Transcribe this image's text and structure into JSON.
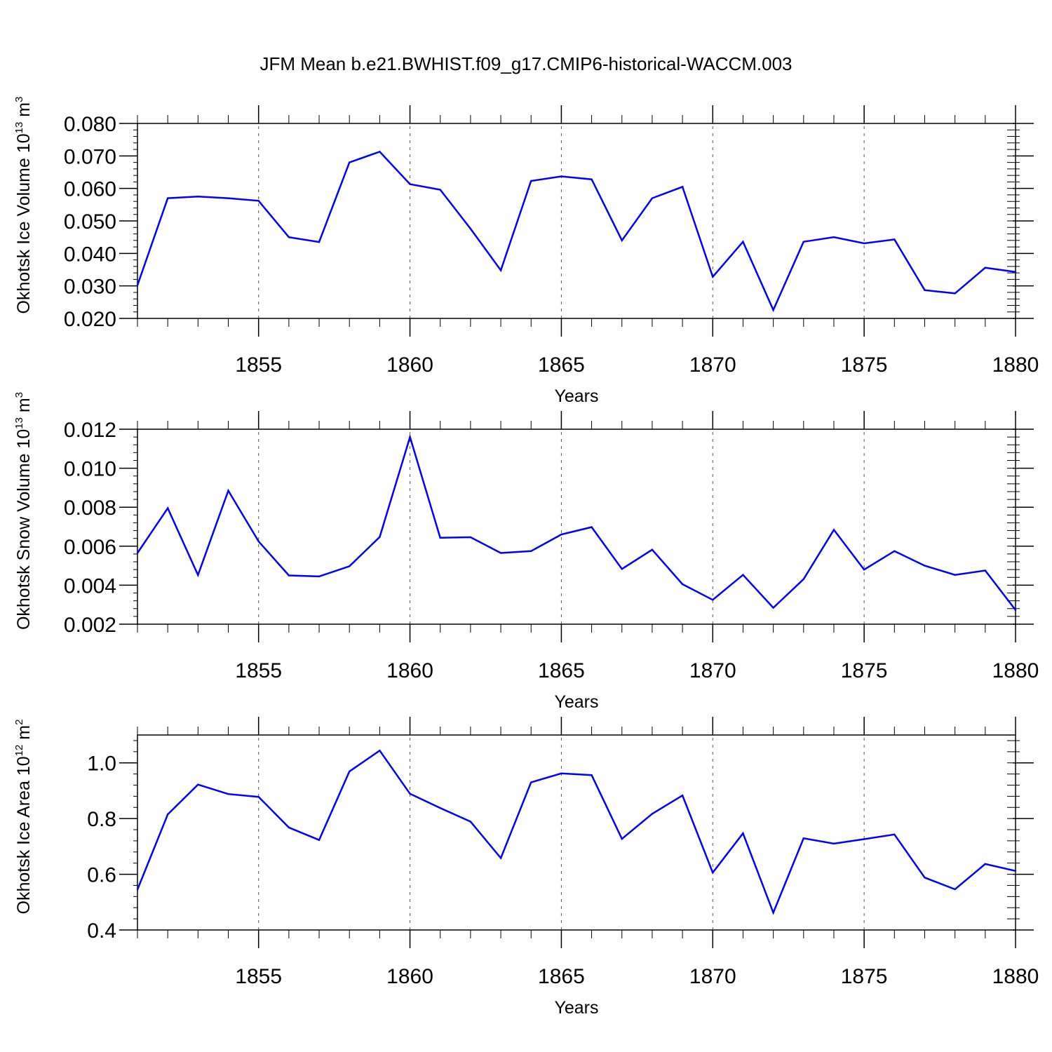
{
  "title": "JFM Mean b.e21.BWHIST.f09_g17.CMIP6-historical-WACCM.003",
  "colors": {
    "line": "#0000ff",
    "axis": "#000000",
    "grid": "#555555"
  },
  "chart_data": [
    {
      "type": "line",
      "ylabel": {
        "text": "Okhotsk Ice Volume 10",
        "exp": "13",
        "unit": " m",
        "unit_exp": "3"
      },
      "xlabel": "Years",
      "xlim": [
        1851,
        1880
      ],
      "ylim": [
        0.02,
        0.08
      ],
      "xticks": [
        1855,
        1860,
        1865,
        1870,
        1875,
        1880
      ],
      "yticks": [
        "0.020",
        "0.030",
        "0.040",
        "0.050",
        "0.060",
        "0.070",
        "0.080"
      ],
      "ytick_values": [
        0.02,
        0.03,
        0.04,
        0.05,
        0.06,
        0.07,
        0.08
      ],
      "yminor_step": 0.002,
      "grid": "dashed vertical at major x ticks",
      "x": [
        1851,
        1852,
        1853,
        1854,
        1855,
        1856,
        1857,
        1858,
        1859,
        1860,
        1861,
        1862,
        1863,
        1864,
        1865,
        1866,
        1867,
        1868,
        1869,
        1870,
        1871,
        1872,
        1873,
        1874,
        1875,
        1876,
        1877,
        1878,
        1879,
        1880
      ],
      "values": [
        0.0302,
        0.057,
        0.0575,
        0.057,
        0.0562,
        0.045,
        0.0435,
        0.068,
        0.0713,
        0.0613,
        0.0596,
        0.0476,
        0.0348,
        0.0623,
        0.0637,
        0.0628,
        0.044,
        0.057,
        0.0605,
        0.0328,
        0.0436,
        0.0226,
        0.0436,
        0.045,
        0.0431,
        0.0443,
        0.0287,
        0.0277,
        0.0356,
        0.0343
      ]
    },
    {
      "type": "line",
      "ylabel": {
        "text": "Okhotsk Snow Volume 10",
        "exp": "13",
        "unit": " m",
        "unit_exp": "3"
      },
      "xlabel": "Years",
      "xlim": [
        1851,
        1880
      ],
      "ylim": [
        0.002,
        0.012
      ],
      "xticks": [
        1855,
        1860,
        1865,
        1870,
        1875,
        1880
      ],
      "yticks": [
        "0.002",
        "0.004",
        "0.006",
        "0.008",
        "0.010",
        "0.012"
      ],
      "ytick_values": [
        0.002,
        0.004,
        0.006,
        0.008,
        0.01,
        0.012
      ],
      "yminor_step": 0.0004,
      "grid": "dashed vertical at major x ticks",
      "x": [
        1851,
        1852,
        1853,
        1854,
        1855,
        1856,
        1857,
        1858,
        1859,
        1860,
        1861,
        1862,
        1863,
        1864,
        1865,
        1866,
        1867,
        1868,
        1869,
        1870,
        1871,
        1872,
        1873,
        1874,
        1875,
        1876,
        1877,
        1878,
        1879,
        1880
      ],
      "values": [
        0.00565,
        0.00795,
        0.00452,
        0.00885,
        0.00625,
        0.0045,
        0.00445,
        0.00497,
        0.00647,
        0.0116,
        0.00643,
        0.00646,
        0.00565,
        0.00575,
        0.0066,
        0.00698,
        0.00483,
        0.00582,
        0.00405,
        0.00325,
        0.00453,
        0.00284,
        0.00431,
        0.00684,
        0.0048,
        0.00575,
        0.005,
        0.00453,
        0.00475,
        0.00273
      ]
    },
    {
      "type": "line",
      "ylabel": {
        "text": "Okhotsk Ice Area 10",
        "exp": "12",
        "unit": " m",
        "unit_exp": "2"
      },
      "xlabel": "Years",
      "xlim": [
        1851,
        1880
      ],
      "ylim": [
        0.4,
        1.1
      ],
      "xticks": [
        1855,
        1860,
        1865,
        1870,
        1875,
        1880
      ],
      "yticks": [
        "0.4",
        "0.6",
        "0.8",
        "1.0"
      ],
      "ytick_values": [
        0.4,
        0.6,
        0.8,
        1.0
      ],
      "yminor_step": 0.04,
      "grid": "dashed vertical at major x ticks",
      "x": [
        1851,
        1852,
        1853,
        1854,
        1855,
        1856,
        1857,
        1858,
        1859,
        1860,
        1861,
        1862,
        1863,
        1864,
        1865,
        1866,
        1867,
        1868,
        1869,
        1870,
        1871,
        1872,
        1873,
        1874,
        1875,
        1876,
        1877,
        1878,
        1879,
        1880
      ],
      "values": [
        0.545,
        0.815,
        0.922,
        0.888,
        0.878,
        0.768,
        0.723,
        0.969,
        1.044,
        0.889,
        0.838,
        0.789,
        0.658,
        0.93,
        0.962,
        0.956,
        0.727,
        0.817,
        0.883,
        0.606,
        0.747,
        0.462,
        0.729,
        0.71,
        0.726,
        0.743,
        0.588,
        0.546,
        0.637,
        0.612
      ]
    }
  ]
}
